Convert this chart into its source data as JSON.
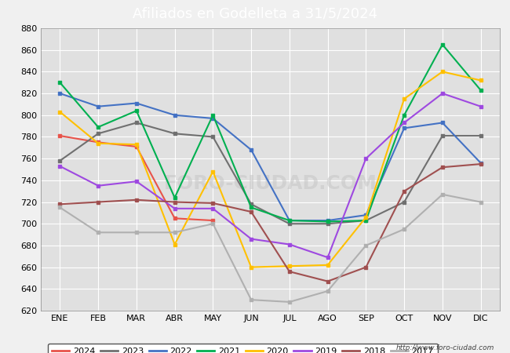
{
  "title": "Afiliados en Godelleta a 31/5/2024",
  "title_color": "#ffffff",
  "title_bg": "#4472c4",
  "ylim": [
    620,
    880
  ],
  "yticks": [
    620,
    640,
    660,
    680,
    700,
    720,
    740,
    760,
    780,
    800,
    820,
    840,
    860,
    880
  ],
  "months": [
    "ENE",
    "FEB",
    "MAR",
    "ABR",
    "MAY",
    "JUN",
    "JUL",
    "AGO",
    "SEP",
    "OCT",
    "NOV",
    "DIC"
  ],
  "series": {
    "2024": {
      "color": "#e8534a",
      "data": [
        781,
        775,
        771,
        705,
        703,
        null,
        null,
        null,
        null,
        null,
        null,
        null
      ]
    },
    "2023": {
      "color": "#707070",
      "data": [
        758,
        783,
        793,
        783,
        780,
        718,
        700,
        700,
        703,
        720,
        781,
        781
      ]
    },
    "2022": {
      "color": "#4472c4",
      "data": [
        820,
        808,
        811,
        800,
        797,
        768,
        703,
        703,
        708,
        788,
        793,
        756
      ]
    },
    "2021": {
      "color": "#00b050",
      "data": [
        830,
        789,
        804,
        724,
        800,
        715,
        703,
        702,
        703,
        800,
        865,
        823
      ]
    },
    "2020": {
      "color": "#ffc000",
      "data": [
        803,
        774,
        773,
        681,
        748,
        660,
        661,
        662,
        706,
        815,
        840,
        832
      ]
    },
    "2019": {
      "color": "#9e49e0",
      "data": [
        753,
        735,
        739,
        714,
        714,
        686,
        681,
        669,
        760,
        793,
        820,
        808
      ]
    },
    "2018": {
      "color": "#a05050",
      "data": [
        718,
        720,
        722,
        720,
        719,
        711,
        656,
        647,
        660,
        730,
        752,
        755
      ]
    },
    "2017": {
      "color": "#b0b0b0",
      "data": [
        715,
        692,
        692,
        692,
        700,
        630,
        628,
        638,
        680,
        695,
        727,
        720
      ]
    }
  },
  "legend_order": [
    "2024",
    "2023",
    "2022",
    "2021",
    "2020",
    "2019",
    "2018",
    "2017"
  ],
  "watermark": "http://www.foro-ciudad.com",
  "fig_bg": "#f0f0f0",
  "plot_bg": "#e0e0e0",
  "grid_color": "#ffffff"
}
